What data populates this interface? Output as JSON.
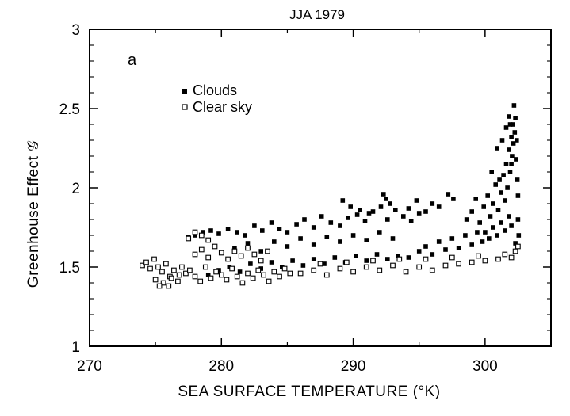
{
  "chart_data": {
    "type": "scatter",
    "title": "JJA 1979",
    "panel_label": "a",
    "xlabel": "SEA SURFACE TEMPERATURE (°K)",
    "ylabel": "Greenhouse Effect 𝒢",
    "xlim": [
      270,
      305
    ],
    "ylim": [
      1,
      3
    ],
    "xticks": [
      270,
      280,
      290,
      300
    ],
    "yticks": [
      1,
      1.5,
      2,
      2.5,
      3
    ],
    "legend_position": "top-left",
    "colors": {
      "clouds": "#000000",
      "clear_sky_fill": "#ffffff",
      "clear_sky_edge": "#000000"
    },
    "series": [
      {
        "name": "Clouds",
        "marker": "filled-square",
        "points": [
          [
            277.5,
            1.69
          ],
          [
            278.0,
            1.7
          ],
          [
            278.6,
            1.72
          ],
          [
            279.2,
            1.73
          ],
          [
            279.8,
            1.71
          ],
          [
            280.5,
            1.74
          ],
          [
            281.2,
            1.72
          ],
          [
            281.8,
            1.7
          ],
          [
            282.5,
            1.76
          ],
          [
            283.1,
            1.73
          ],
          [
            283.8,
            1.78
          ],
          [
            284.4,
            1.74
          ],
          [
            285.0,
            1.72
          ],
          [
            285.7,
            1.77
          ],
          [
            286.3,
            1.8
          ],
          [
            287.0,
            1.75
          ],
          [
            287.6,
            1.82
          ],
          [
            288.3,
            1.78
          ],
          [
            289.0,
            1.76
          ],
          [
            289.6,
            1.81
          ],
          [
            290.3,
            1.83
          ],
          [
            290.9,
            1.79
          ],
          [
            291.5,
            1.85
          ],
          [
            292.1,
            1.88
          ],
          [
            292.6,
            1.8
          ],
          [
            293.2,
            1.86
          ],
          [
            293.8,
            1.82
          ],
          [
            294.4,
            1.79
          ],
          [
            295.0,
            1.84
          ],
          [
            279.0,
            1.45
          ],
          [
            279.8,
            1.48
          ],
          [
            280.6,
            1.5
          ],
          [
            281.4,
            1.47
          ],
          [
            282.2,
            1.52
          ],
          [
            283.0,
            1.49
          ],
          [
            283.8,
            1.53
          ],
          [
            284.6,
            1.5
          ],
          [
            285.4,
            1.54
          ],
          [
            286.2,
            1.51
          ],
          [
            287.0,
            1.55
          ],
          [
            287.8,
            1.52
          ],
          [
            288.6,
            1.56
          ],
          [
            289.4,
            1.53
          ],
          [
            290.2,
            1.57
          ],
          [
            291.0,
            1.54
          ],
          [
            291.8,
            1.58
          ],
          [
            292.6,
            1.55
          ],
          [
            293.4,
            1.57
          ],
          [
            294.2,
            1.56
          ],
          [
            281.0,
            1.62
          ],
          [
            282.0,
            1.65
          ],
          [
            283.0,
            1.6
          ],
          [
            284.0,
            1.66
          ],
          [
            285.0,
            1.63
          ],
          [
            286.0,
            1.68
          ],
          [
            287.0,
            1.64
          ],
          [
            288.0,
            1.69
          ],
          [
            289.0,
            1.66
          ],
          [
            290.0,
            1.7
          ],
          [
            291.0,
            1.67
          ],
          [
            292.0,
            1.72
          ],
          [
            293.0,
            1.68
          ],
          [
            289.2,
            1.92
          ],
          [
            289.8,
            1.88
          ],
          [
            290.5,
            1.86
          ],
          [
            291.2,
            1.84
          ],
          [
            292.3,
            1.96
          ],
          [
            292.5,
            1.93
          ],
          [
            292.8,
            1.9
          ],
          [
            294.2,
            1.87
          ],
          [
            294.8,
            1.92
          ],
          [
            295.5,
            1.85
          ],
          [
            296.0,
            1.9
          ],
          [
            296.5,
            1.88
          ],
          [
            297.2,
            1.96
          ],
          [
            297.6,
            1.93
          ],
          [
            295.0,
            1.6
          ],
          [
            295.5,
            1.63
          ],
          [
            296.0,
            1.58
          ],
          [
            296.5,
            1.66
          ],
          [
            297.0,
            1.61
          ],
          [
            297.5,
            1.68
          ],
          [
            298.0,
            1.62
          ],
          [
            298.5,
            1.7
          ],
          [
            299.0,
            1.64
          ],
          [
            299.4,
            1.72
          ],
          [
            299.8,
            1.66
          ],
          [
            298.6,
            1.8
          ],
          [
            299.0,
            1.85
          ],
          [
            299.3,
            1.93
          ],
          [
            299.6,
            1.78
          ],
          [
            299.9,
            1.88
          ],
          [
            300.2,
            1.95
          ],
          [
            300.4,
            1.82
          ],
          [
            300.6,
            1.9
          ],
          [
            300.8,
            2.02
          ],
          [
            301.0,
            1.86
          ],
          [
            301.2,
            1.97
          ],
          [
            301.4,
            2.08
          ],
          [
            301.5,
            1.92
          ],
          [
            301.6,
            2.15
          ],
          [
            301.7,
            2.0
          ],
          [
            301.8,
            2.24
          ],
          [
            301.9,
            2.1
          ],
          [
            302.0,
            2.32
          ],
          [
            302.05,
            2.2
          ],
          [
            302.1,
            2.4
          ],
          [
            302.15,
            2.28
          ],
          [
            302.2,
            2.52
          ],
          [
            302.25,
            2.35
          ],
          [
            302.3,
            2.44
          ],
          [
            302.35,
            2.18
          ],
          [
            302.4,
            2.3
          ],
          [
            302.45,
            2.05
          ],
          [
            302.5,
            1.95
          ],
          [
            302.5,
            1.8
          ],
          [
            302.55,
            1.7
          ],
          [
            300.0,
            1.72
          ],
          [
            300.3,
            1.68
          ],
          [
            300.6,
            1.75
          ],
          [
            300.9,
            1.7
          ],
          [
            301.2,
            1.78
          ],
          [
            301.5,
            1.73
          ],
          [
            301.8,
            1.82
          ],
          [
            302.0,
            1.76
          ],
          [
            302.3,
            1.65
          ],
          [
            300.5,
            2.1
          ],
          [
            300.9,
            2.25
          ],
          [
            301.1,
            2.05
          ],
          [
            301.3,
            2.3
          ],
          [
            301.6,
            2.38
          ],
          [
            301.8,
            2.45
          ],
          [
            302.0,
            2.15
          ],
          [
            301.9,
            2.4
          ]
        ]
      },
      {
        "name": "Clear sky",
        "marker": "open-square",
        "points": [
          [
            274.0,
            1.51
          ],
          [
            274.3,
            1.53
          ],
          [
            274.6,
            1.49
          ],
          [
            274.9,
            1.55
          ],
          [
            275.2,
            1.5
          ],
          [
            275.5,
            1.47
          ],
          [
            275.8,
            1.52
          ],
          [
            276.1,
            1.44
          ],
          [
            276.4,
            1.48
          ],
          [
            276.7,
            1.41
          ],
          [
            277.0,
            1.5
          ],
          [
            277.3,
            1.46
          ],
          [
            275.0,
            1.42
          ],
          [
            275.6,
            1.4
          ],
          [
            276.2,
            1.43
          ],
          [
            275.3,
            1.38
          ],
          [
            276.0,
            1.38
          ],
          [
            276.8,
            1.45
          ],
          [
            277.6,
            1.48
          ],
          [
            278.0,
            1.44
          ],
          [
            278.4,
            1.41
          ],
          [
            278.8,
            1.5
          ],
          [
            279.2,
            1.43
          ],
          [
            279.6,
            1.47
          ],
          [
            280.0,
            1.45
          ],
          [
            280.4,
            1.42
          ],
          [
            280.8,
            1.49
          ],
          [
            281.2,
            1.44
          ],
          [
            281.6,
            1.4
          ],
          [
            282.0,
            1.46
          ],
          [
            282.4,
            1.43
          ],
          [
            282.8,
            1.48
          ],
          [
            283.2,
            1.45
          ],
          [
            283.6,
            1.41
          ],
          [
            284.0,
            1.47
          ],
          [
            284.4,
            1.44
          ],
          [
            284.8,
            1.49
          ],
          [
            285.2,
            1.46
          ],
          [
            278.0,
            1.58
          ],
          [
            278.5,
            1.61
          ],
          [
            279.0,
            1.56
          ],
          [
            279.5,
            1.63
          ],
          [
            280.0,
            1.59
          ],
          [
            280.5,
            1.55
          ],
          [
            281.0,
            1.6
          ],
          [
            281.5,
            1.57
          ],
          [
            282.0,
            1.62
          ],
          [
            282.5,
            1.58
          ],
          [
            283.0,
            1.54
          ],
          [
            283.5,
            1.6
          ],
          [
            277.5,
            1.68
          ],
          [
            278.0,
            1.72
          ],
          [
            278.5,
            1.7
          ],
          [
            279.0,
            1.67
          ],
          [
            286.0,
            1.46
          ],
          [
            287.0,
            1.48
          ],
          [
            288.0,
            1.45
          ],
          [
            289.0,
            1.49
          ],
          [
            290.0,
            1.47
          ],
          [
            291.0,
            1.5
          ],
          [
            292.0,
            1.48
          ],
          [
            293.0,
            1.51
          ],
          [
            294.0,
            1.47
          ],
          [
            295.0,
            1.5
          ],
          [
            296.0,
            1.48
          ],
          [
            297.0,
            1.51
          ],
          [
            298.0,
            1.52
          ],
          [
            299.0,
            1.53
          ],
          [
            300.0,
            1.54
          ],
          [
            301.0,
            1.55
          ],
          [
            302.0,
            1.56
          ],
          [
            287.5,
            1.52
          ],
          [
            289.5,
            1.53
          ],
          [
            291.5,
            1.54
          ],
          [
            293.5,
            1.55
          ],
          [
            295.5,
            1.55
          ],
          [
            297.5,
            1.56
          ],
          [
            299.5,
            1.57
          ],
          [
            301.5,
            1.58
          ],
          [
            302.3,
            1.6
          ],
          [
            302.5,
            1.63
          ]
        ]
      }
    ]
  }
}
